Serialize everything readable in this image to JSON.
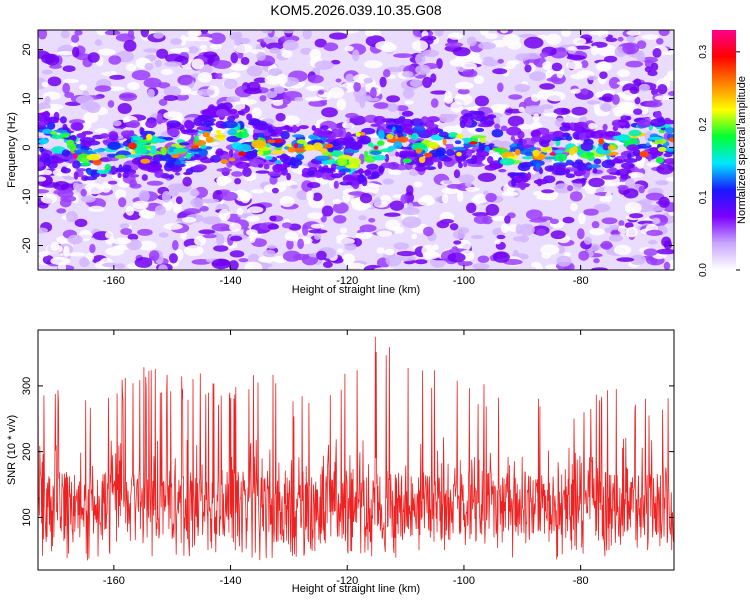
{
  "title": "KOM5.2026.039.10.35.G08",
  "chart_data": [
    {
      "type": "heatmap",
      "xlabel": "Height of straight line (km)",
      "ylabel": "Frequency (Hz)",
      "xlim": [
        -173,
        -64
      ],
      "ylim": [
        -25,
        24
      ],
      "xticks": [
        -160,
        -140,
        -120,
        -100,
        -80
      ],
      "yticks": [
        -20,
        -10,
        0,
        10,
        20
      ],
      "colorbar": {
        "label": "Normalized spectral amplitude",
        "range": [
          0.0,
          0.33
        ],
        "ticks": [
          0.0,
          0.1,
          0.2,
          0.3
        ],
        "colormap": [
          "#ffffff",
          "#c9a6ff",
          "#7a00ff",
          "#1818ff",
          "#00e8ff",
          "#00ff30",
          "#ffff00",
          "#ff8000",
          "#ff0000",
          "#ff0090"
        ]
      },
      "band": {
        "center_hz": 0,
        "half_width_hz": 5,
        "peak_amplitude": 0.33
      }
    },
    {
      "type": "line",
      "xlabel": "Height of straight line (km)",
      "ylabel": "SNR (10 * v/v)",
      "xlim": [
        -173,
        -64
      ],
      "ylim": [
        20,
        385
      ],
      "xticks": [
        -160,
        -140,
        -120,
        -100,
        -80
      ],
      "yticks": [
        100,
        200,
        300
      ],
      "color": "#ee2222",
      "envelope": {
        "x": [
          -173,
          -165,
          -160,
          -155,
          -150,
          -145,
          -140,
          -135,
          -130,
          -125,
          -120,
          -115,
          -110,
          -105,
          -100,
          -95,
          -90,
          -85,
          -80,
          -75,
          -70,
          -64
        ],
        "max": [
          330,
          290,
          300,
          335,
          315,
          320,
          300,
          345,
          290,
          310,
          330,
          380,
          370,
          325,
          310,
          300,
          290,
          305,
          285,
          300,
          280,
          290
        ],
        "min": [
          40,
          35,
          30,
          40,
          35,
          40,
          45,
          35,
          40,
          30,
          35,
          40,
          35,
          45,
          40,
          35,
          40,
          35,
          40,
          40,
          45,
          40
        ]
      }
    }
  ]
}
